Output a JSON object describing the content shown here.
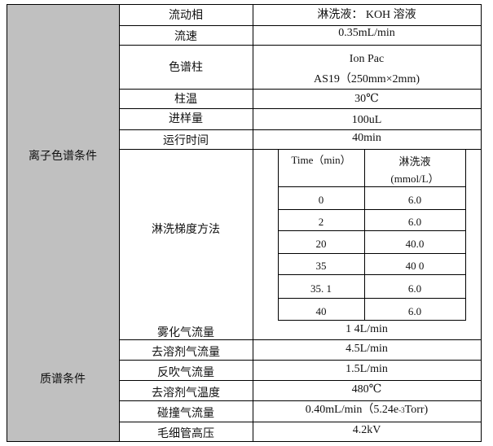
{
  "sections": {
    "ion_chromatography": "离子色谱条件",
    "mass_spec": "质谱条件"
  },
  "ic_rows": [
    {
      "label": "流动相",
      "value": "淋洗液：  KOH 溶液"
    },
    {
      "label": "流速",
      "value": "0.35mL/min"
    },
    {
      "label": "色谱柱",
      "value_line1": "Ion Pac",
      "value_line2": "AS19（250mm×2mm)"
    },
    {
      "label": "柱温",
      "value": "30℃"
    },
    {
      "label": "进样量",
      "value": "100uL"
    },
    {
      "label": "运行时间",
      "value": "40min"
    },
    {
      "label": "淋洗梯度方法"
    }
  ],
  "gradient": {
    "headers": [
      "Time（min）",
      "淋洗液",
      "(mmol/L）"
    ],
    "rows": [
      [
        "0",
        "6.0"
      ],
      [
        "2",
        "6.0"
      ],
      [
        "20",
        "40.0"
      ],
      [
        "35",
        "40 0"
      ],
      [
        "35. 1",
        "6.0"
      ],
      [
        "40",
        "6.0"
      ]
    ]
  },
  "ms_rows": [
    {
      "label": "雾化气流量",
      "value": "1 4L/min"
    },
    {
      "label": "去溶剂气流量",
      "value": "4.5L/min"
    },
    {
      "label": "反吹气流量",
      "value": "1.5L/min"
    },
    {
      "label": "去溶剂气温度",
      "value": "480℃"
    },
    {
      "label": "碰撞气流量",
      "value": "0.40mL/min（5.24e",
      "sup": "-3",
      "value_tail": "Torr)"
    },
    {
      "label": "毛细管高压",
      "value": "4.2kV"
    }
  ]
}
